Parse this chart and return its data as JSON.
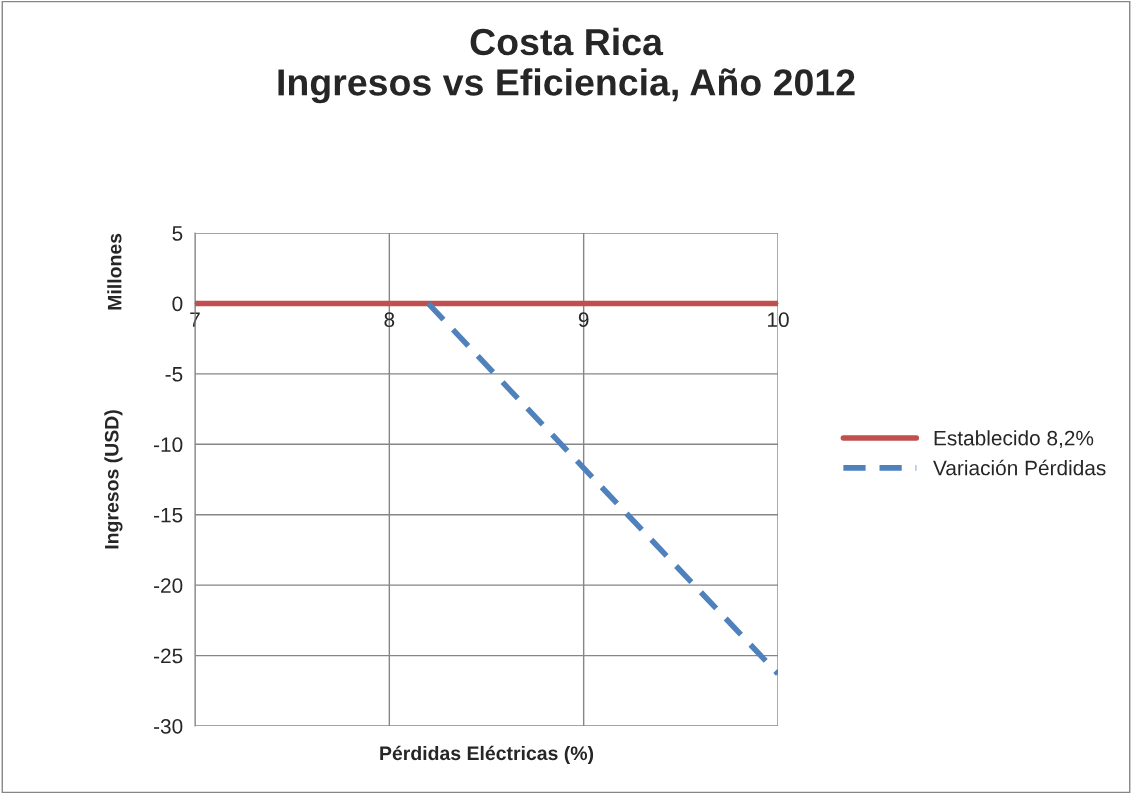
{
  "chart_data": {
    "type": "line",
    "title": "Costa Rica\nIngresos vs Eficiencia, Año 2012",
    "xlabel": "Pérdidas Eléctricas (%)",
    "ylabel": "Ingresos (USD)",
    "annotations": [
      "Millones"
    ],
    "series": [
      {
        "name": "Establecido 8,2%",
        "color": "#c0504d",
        "x": [
          7,
          10
        ],
        "values": [
          0,
          0
        ],
        "line_style": "solid"
      },
      {
        "name": "Variación Pérdidas",
        "color": "#4f81bd",
        "x": [
          8.2,
          10
        ],
        "values": [
          0,
          -26.3
        ],
        "line_style": "dashed"
      }
    ],
    "xlim": [
      7,
      10
    ],
    "xticks": [
      7,
      8,
      9,
      10
    ],
    "ylim": [
      -30,
      5
    ],
    "yticks": [
      -30,
      -25,
      -20,
      -15,
      -10,
      -5,
      0,
      5
    ],
    "grid": true,
    "legend": "right",
    "marker": "none"
  }
}
